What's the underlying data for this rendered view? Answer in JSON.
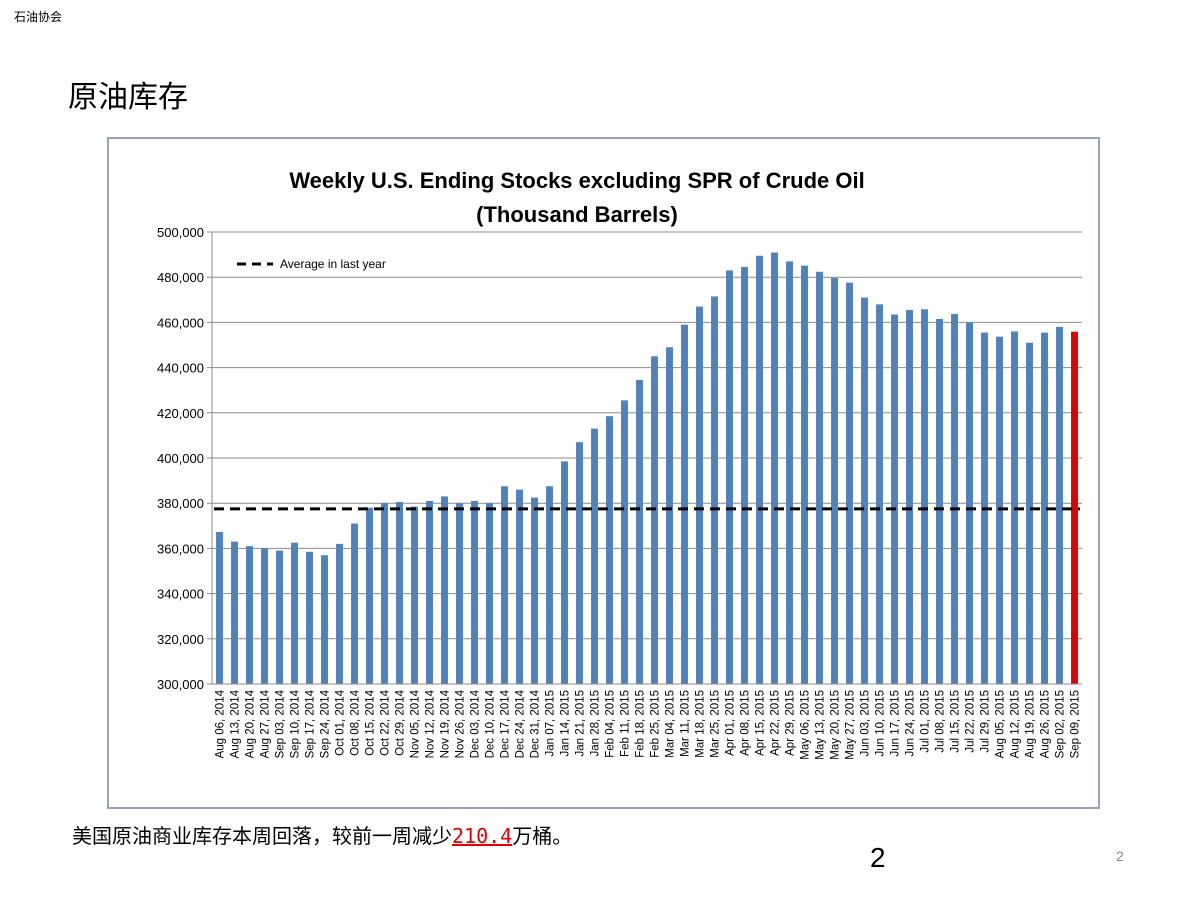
{
  "header": {
    "org": "石油协会",
    "title": "原油库存"
  },
  "caption": {
    "before": "美国原油商业库存本周回落，较前一周减少",
    "highlight": "210.4",
    "after": "万桶。"
  },
  "footer": {
    "big_number": "2",
    "small_number": "2"
  },
  "chart_data": {
    "type": "bar",
    "title": "Weekly U.S. Ending Stocks excluding SPR of Crude Oil",
    "subtitle": "(Thousand Barrels)",
    "xlabel": "",
    "ylabel": "",
    "ylim": [
      300000,
      500000
    ],
    "yticks": [
      300000,
      320000,
      340000,
      360000,
      380000,
      400000,
      420000,
      440000,
      460000,
      480000,
      500000
    ],
    "ytick_labels": [
      "300,000",
      "320,000",
      "340,000",
      "360,000",
      "380,000",
      "400,000",
      "420,000",
      "440,000",
      "460,000",
      "480,000",
      "500,000"
    ],
    "grid": true,
    "bar_color": "#4f81bd",
    "highlight_color": "#e00000",
    "highlight_last": true,
    "reference_line": {
      "label": "Average in last year",
      "value": 377500,
      "style": "dashed",
      "color": "#000000"
    },
    "legend_position": "top-left",
    "categories": [
      "Aug 06, 2014",
      "Aug 13, 2014",
      "Aug 20, 2014",
      "Aug 27, 2014",
      "Sep 03, 2014",
      "Sep 10, 2014",
      "Sep 17, 2014",
      "Sep 24, 2014",
      "Oct 01, 2014",
      "Oct 08, 2014",
      "Oct 15, 2014",
      "Oct 22, 2014",
      "Oct 29, 2014",
      "Nov 05, 2014",
      "Nov 12, 2014",
      "Nov 19, 2014",
      "Nov 26, 2014",
      "Dec 03, 2014",
      "Dec 10, 2014",
      "Dec 17, 2014",
      "Dec 24, 2014",
      "Dec 31, 2014",
      "Jan 07, 2015",
      "Jan 14, 2015",
      "Jan 21, 2015",
      "Jan 28, 2015",
      "Feb 04, 2015",
      "Feb 11, 2015",
      "Feb 18, 2015",
      "Feb 25, 2015",
      "Mar 04, 2015",
      "Mar 11, 2015",
      "Mar 18, 2015",
      "Mar 25, 2015",
      "Apr 01, 2015",
      "Apr 08, 2015",
      "Apr 15, 2015",
      "Apr 22, 2015",
      "Apr 29, 2015",
      "May 06, 2015",
      "May 13, 2015",
      "May 20, 2015",
      "May 27, 2015",
      "Jun 03, 2015",
      "Jun 10, 2015",
      "Jun 17, 2015",
      "Jun 24, 2015",
      "Jul 01, 2015",
      "Jul 08, 2015",
      "Jul 15, 2015",
      "Jul 22, 2015",
      "Jul 29, 2015",
      "Aug 05, 2015",
      "Aug 12, 2015",
      "Aug 19, 2015",
      "Aug 26, 2015",
      "Sep 02, 2015",
      "Sep 09, 2015"
    ],
    "values": [
      367300,
      363000,
      361000,
      360000,
      359000,
      362500,
      358500,
      357000,
      362000,
      371000,
      378000,
      380000,
      380500,
      378500,
      381000,
      383000,
      380000,
      381000,
      380000,
      387500,
      386000,
      382500,
      387500,
      398500,
      407000,
      413000,
      418500,
      425500,
      434500,
      445000,
      449000,
      459000,
      467000,
      471500,
      483000,
      484500,
      489500,
      490900,
      487000,
      485100,
      482400,
      479700,
      477600,
      471000,
      468000,
      463500,
      465500,
      465800,
      461500,
      463700,
      460000,
      455500,
      453700,
      456000,
      451000,
      455500,
      458000,
      455900
    ]
  }
}
